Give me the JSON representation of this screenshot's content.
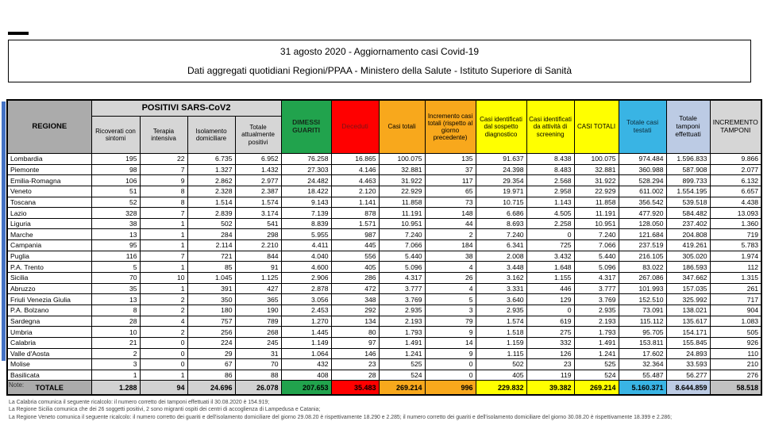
{
  "title": {
    "line1": "31 agosto 2020 - Aggiornamento casi Covid-19",
    "line2": "Dati aggregati quotidiani Regioni/PPAA - Ministero della Salute - Istituto Superiore di Sanità"
  },
  "table": {
    "group_header": "POSITIVI SARS-CoV2",
    "columns": [
      "REGIONE",
      "Ricoverati con sintomi",
      "Terapia intensiva",
      "Isolamento domiciliare",
      "Totale attualmente positivi",
      "DIMESSI GUARITI",
      "Deceduti",
      "Casi totali",
      "Incremento casi totali (rispetto al giorno precedente)",
      "Casi identificati dal sospetto diagnostico",
      "Casi identificati da attività di screening",
      "CASI TOTALI",
      "Totale casi testati",
      "Totale tamponi effettuati",
      "INCREMENTO TAMPONI"
    ],
    "rows": [
      {
        "region": "Lombardia",
        "values": [
          "195",
          "22",
          "6.735",
          "6.952",
          "76.258",
          "16.865",
          "100.075",
          "135",
          "91.637",
          "8.438",
          "100.075",
          "974.484",
          "1.596.833",
          "9.866"
        ]
      },
      {
        "region": "Piemonte",
        "values": [
          "98",
          "7",
          "1.327",
          "1.432",
          "27.303",
          "4.146",
          "32.881",
          "37",
          "24.398",
          "8.483",
          "32.881",
          "360.988",
          "587.908",
          "2.077"
        ]
      },
      {
        "region": "Emilia-Romagna",
        "values": [
          "106",
          "9",
          "2.862",
          "2.977",
          "24.482",
          "4.463",
          "31.922",
          "117",
          "29.354",
          "2.568",
          "31.922",
          "528.294",
          "899.733",
          "6.132"
        ]
      },
      {
        "region": "Veneto",
        "values": [
          "51",
          "8",
          "2.328",
          "2.387",
          "18.422",
          "2.120",
          "22.929",
          "65",
          "19.971",
          "2.958",
          "22.929",
          "611.002",
          "1.554.195",
          "6.657"
        ]
      },
      {
        "region": "Toscana",
        "values": [
          "52",
          "8",
          "1.514",
          "1.574",
          "9.143",
          "1.141",
          "11.858",
          "73",
          "10.715",
          "1.143",
          "11.858",
          "356.542",
          "539.518",
          "4.438"
        ]
      },
      {
        "region": "Lazio",
        "values": [
          "328",
          "7",
          "2.839",
          "3.174",
          "7.139",
          "878",
          "11.191",
          "148",
          "6.686",
          "4.505",
          "11.191",
          "477.920",
          "584.482",
          "13.093"
        ]
      },
      {
        "region": "Liguria",
        "values": [
          "38",
          "1",
          "502",
          "541",
          "8.839",
          "1.571",
          "10.951",
          "44",
          "8.693",
          "2.258",
          "10.951",
          "128.050",
          "237.402",
          "1.360"
        ]
      },
      {
        "region": "Marche",
        "values": [
          "13",
          "1",
          "284",
          "298",
          "5.955",
          "987",
          "7.240",
          "2",
          "7.240",
          "0",
          "7.240",
          "121.684",
          "204.808",
          "719"
        ]
      },
      {
        "region": "Campania",
        "values": [
          "95",
          "1",
          "2.114",
          "2.210",
          "4.411",
          "445",
          "7.066",
          "184",
          "6.341",
          "725",
          "7.066",
          "237.519",
          "419.261",
          "5.783"
        ]
      },
      {
        "region": "Puglia",
        "values": [
          "116",
          "7",
          "721",
          "844",
          "4.040",
          "556",
          "5.440",
          "38",
          "2.008",
          "3.432",
          "5.440",
          "216.105",
          "305.020",
          "1.974"
        ]
      },
      {
        "region": "P.A. Trento",
        "values": [
          "5",
          "1",
          "85",
          "91",
          "4.600",
          "405",
          "5.096",
          "4",
          "3.448",
          "1.648",
          "5.096",
          "83.022",
          "186.593",
          "112"
        ]
      },
      {
        "region": "Sicilia",
        "values": [
          "70",
          "10",
          "1.045",
          "1.125",
          "2.906",
          "286",
          "4.317",
          "26",
          "3.162",
          "1.155",
          "4.317",
          "267.086",
          "347.662",
          "1.315"
        ]
      },
      {
        "region": "Abruzzo",
        "values": [
          "35",
          "1",
          "391",
          "427",
          "2.878",
          "472",
          "3.777",
          "4",
          "3.331",
          "446",
          "3.777",
          "101.993",
          "157.035",
          "261"
        ]
      },
      {
        "region": "Friuli Venezia Giulia",
        "values": [
          "13",
          "2",
          "350",
          "365",
          "3.056",
          "348",
          "3.769",
          "5",
          "3.640",
          "129",
          "3.769",
          "152.510",
          "325.992",
          "717"
        ]
      },
      {
        "region": "P.A. Bolzano",
        "values": [
          "8",
          "2",
          "180",
          "190",
          "2.453",
          "292",
          "2.935",
          "3",
          "2.935",
          "0",
          "2.935",
          "73.091",
          "138.021",
          "904"
        ]
      },
      {
        "region": "Sardegna",
        "values": [
          "28",
          "4",
          "757",
          "789",
          "1.270",
          "134",
          "2.193",
          "79",
          "1.574",
          "619",
          "2.193",
          "115.112",
          "135.617",
          "1.083"
        ]
      },
      {
        "region": "Umbria",
        "values": [
          "10",
          "2",
          "256",
          "268",
          "1.445",
          "80",
          "1.793",
          "9",
          "1.518",
          "275",
          "1.793",
          "95.705",
          "154.171",
          "505"
        ]
      },
      {
        "region": "Calabria",
        "values": [
          "21",
          "0",
          "224",
          "245",
          "1.149",
          "97",
          "1.491",
          "14",
          "1.159",
          "332",
          "1.491",
          "153.811",
          "155.845",
          "926"
        ]
      },
      {
        "region": "Valle d'Aosta",
        "values": [
          "2",
          "0",
          "29",
          "31",
          "1.064",
          "146",
          "1.241",
          "9",
          "1.115",
          "126",
          "1.241",
          "17.602",
          "24.893",
          "110"
        ]
      },
      {
        "region": "Molise",
        "values": [
          "3",
          "0",
          "67",
          "70",
          "432",
          "23",
          "525",
          "0",
          "502",
          "23",
          "525",
          "32.364",
          "33.593",
          "210"
        ]
      },
      {
        "region": "Basilicata",
        "values": [
          "1",
          "1",
          "86",
          "88",
          "408",
          "28",
          "524",
          "0",
          "405",
          "119",
          "524",
          "55.487",
          "56.277",
          "276"
        ]
      }
    ],
    "total": {
      "label": "TOTALE",
      "values": [
        "1.288",
        "94",
        "24.696",
        "26.078",
        "207.653",
        "35.483",
        "269.214",
        "996",
        "229.832",
        "39.382",
        "269.214",
        "5.160.371",
        "8.644.859",
        "58.518"
      ]
    }
  },
  "notes": {
    "heading": "Note:",
    "items": [
      "La Calabria comunica il seguente ricalcolo: il numero corretto dei tamponi effettuati il 30.08.2020 è 154.919;",
      "La Regione Sicilia comunica che dei 26 soggetti positivi, 2 sono migranti ospiti dei centri di accoglienza di Lampedusa e Catania;",
      "La Regione Veneto comunica il seguente ricalcolo: il numero corretto dei guariti e dell'isolamento domiciliare del giorno 29.08.20 è rispettivamente 18.290 e 2.285;  il numero corretto dei guariti e dell'isolamento domiciliare del giorno 30.08.20 è rispettivamente 18.399 e 2.286;"
    ]
  },
  "colors": {
    "green": "#21A34D",
    "red": "#FF0000",
    "orange": "#F8A81C",
    "yellow": "#FFFF00",
    "cyan": "#39B4E4",
    "periwinkle": "#BCCBE4",
    "gray_header": "#ABABAB",
    "gray_sub": "#D6D6D6",
    "blue_strip": "#4472C4"
  }
}
